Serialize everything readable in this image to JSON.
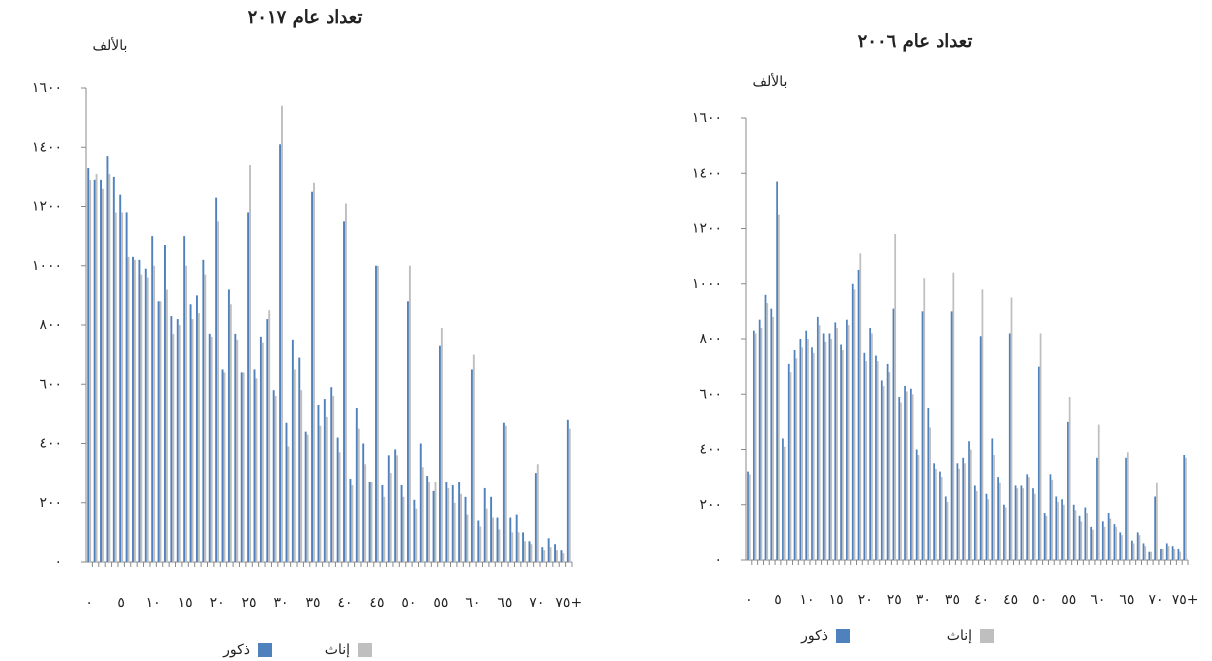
{
  "chart_data": [
    {
      "type": "bar",
      "title": "تعداد عام ٢٠١٧",
      "y_label": "بالألف",
      "categories": [
        "٠",
        null,
        null,
        null,
        null,
        "٥",
        null,
        null,
        null,
        null,
        "١٠",
        null,
        null,
        null,
        null,
        "١٥",
        null,
        null,
        null,
        null,
        "٢٠",
        null,
        null,
        null,
        null,
        "٢٥",
        null,
        null,
        null,
        null,
        "٣٠",
        null,
        null,
        null,
        null,
        "٣٥",
        null,
        null,
        null,
        null,
        "٤٠",
        null,
        null,
        null,
        null,
        "٤٥",
        null,
        null,
        null,
        null,
        "٥٠",
        null,
        null,
        null,
        null,
        "٥٥",
        null,
        null,
        null,
        null,
        "٦٠",
        null,
        null,
        null,
        null,
        "٦٥",
        null,
        null,
        null,
        null,
        "٧٠",
        null,
        null,
        null,
        null,
        "٧٥+"
      ],
      "series": [
        {
          "name": "ذكور",
          "color": "#4f81bd",
          "values": [
            1330,
            1290,
            1290,
            1370,
            1300,
            1240,
            1180,
            1030,
            1020,
            990,
            1100,
            880,
            1070,
            830,
            820,
            1100,
            870,
            900,
            1020,
            770,
            1230,
            650,
            920,
            770,
            640,
            1180,
            650,
            760,
            820,
            580,
            1410,
            470,
            750,
            690,
            440,
            1250,
            530,
            550,
            590,
            420,
            1150,
            280,
            520,
            400,
            270,
            1000,
            260,
            360,
            380,
            260,
            880,
            210,
            400,
            290,
            240,
            730,
            270,
            260,
            270,
            220,
            650,
            140,
            250,
            220,
            150,
            470,
            150,
            160,
            100,
            70,
            300,
            50,
            80,
            60,
            40,
            480
          ]
        },
        {
          "name": "إناث",
          "color": "#bfbfbf",
          "values": [
            1290,
            1310,
            1260,
            1310,
            1180,
            1180,
            1030,
            1020,
            970,
            960,
            1000,
            880,
            920,
            770,
            800,
            1000,
            820,
            840,
            970,
            760,
            1150,
            640,
            870,
            750,
            640,
            1340,
            620,
            740,
            850,
            560,
            1540,
            390,
            650,
            580,
            430,
            1280,
            460,
            490,
            560,
            370,
            1210,
            260,
            450,
            330,
            270,
            1000,
            220,
            300,
            360,
            220,
            1000,
            180,
            320,
            270,
            270,
            790,
            250,
            200,
            230,
            160,
            700,
            120,
            180,
            150,
            110,
            460,
            100,
            100,
            70,
            60,
            330,
            40,
            50,
            40,
            30,
            450
          ]
        }
      ],
      "ylim": [
        0,
        1600
      ],
      "yticks": [
        {
          "value": 0,
          "label": "٠"
        },
        {
          "value": 200,
          "label": "٢٠٠"
        },
        {
          "value": 400,
          "label": "٤٠٠"
        },
        {
          "value": 600,
          "label": "٦٠٠"
        },
        {
          "value": 800,
          "label": "٨٠٠"
        },
        {
          "value": 1000,
          "label": "١٠٠٠"
        },
        {
          "value": 1200,
          "label": "١٢٠٠"
        },
        {
          "value": 1400,
          "label": "١٤٠٠"
        },
        {
          "value": 1600,
          "label": "١٦٠٠"
        }
      ]
    },
    {
      "type": "bar",
      "title": "تعداد عام ٢٠٠٦",
      "y_label": "بالألف",
      "categories": [
        "٠",
        null,
        null,
        null,
        null,
        "٥",
        null,
        null,
        null,
        null,
        "١٠",
        null,
        null,
        null,
        null,
        "١٥",
        null,
        null,
        null,
        null,
        "٢٠",
        null,
        null,
        null,
        null,
        "٢٥",
        null,
        null,
        null,
        null,
        "٣٠",
        null,
        null,
        null,
        null,
        "٣٥",
        null,
        null,
        null,
        null,
        "٤٠",
        null,
        null,
        null,
        null,
        "٤٥",
        null,
        null,
        null,
        null,
        "٥٠",
        null,
        null,
        null,
        null,
        "٥٥",
        null,
        null,
        null,
        null,
        "٦٠",
        null,
        null,
        null,
        null,
        "٦٥",
        null,
        null,
        null,
        null,
        "٧٠",
        null,
        null,
        null,
        null,
        "٧٥+"
      ],
      "series": [
        {
          "name": "ذكور",
          "color": "#4f81bd",
          "values": [
            320,
            830,
            870,
            960,
            910,
            1370,
            440,
            710,
            760,
            800,
            830,
            770,
            880,
            820,
            820,
            860,
            780,
            870,
            1000,
            1050,
            750,
            840,
            740,
            650,
            710,
            910,
            590,
            630,
            620,
            400,
            900,
            550,
            350,
            320,
            230,
            900,
            350,
            370,
            430,
            270,
            810,
            240,
            440,
            300,
            200,
            820,
            270,
            270,
            310,
            260,
            700,
            170,
            310,
            230,
            220,
            500,
            200,
            160,
            190,
            120,
            370,
            140,
            170,
            130,
            100,
            370,
            70,
            100,
            60,
            30,
            230,
            40,
            60,
            50,
            40,
            380
          ]
        },
        {
          "name": "إناث",
          "color": "#bfbfbf",
          "values": [
            310,
            820,
            840,
            930,
            880,
            1250,
            410,
            680,
            730,
            770,
            800,
            750,
            850,
            790,
            800,
            840,
            760,
            850,
            980,
            1110,
            720,
            820,
            720,
            630,
            680,
            1180,
            570,
            610,
            600,
            380,
            1020,
            480,
            330,
            300,
            210,
            1040,
            330,
            350,
            400,
            250,
            980,
            220,
            380,
            280,
            190,
            950,
            260,
            260,
            300,
            240,
            820,
            160,
            290,
            210,
            200,
            590,
            180,
            140,
            170,
            110,
            490,
            120,
            150,
            120,
            90,
            390,
            60,
            90,
            50,
            30,
            280,
            40,
            50,
            40,
            30,
            370
          ]
        }
      ],
      "ylim": [
        0,
        1600
      ],
      "yticks": [
        {
          "value": 0,
          "label": "٠"
        },
        {
          "value": 200,
          "label": "٢٠٠"
        },
        {
          "value": 400,
          "label": "٤٠٠"
        },
        {
          "value": 600,
          "label": "٦٠٠"
        },
        {
          "value": 800,
          "label": "٨٠٠"
        },
        {
          "value": 1000,
          "label": "١٠٠٠"
        },
        {
          "value": 1200,
          "label": "١٢٠٠"
        },
        {
          "value": 1400,
          "label": "١٤٠٠"
        },
        {
          "value": 1600,
          "label": "١٦٠٠"
        }
      ]
    }
  ]
}
